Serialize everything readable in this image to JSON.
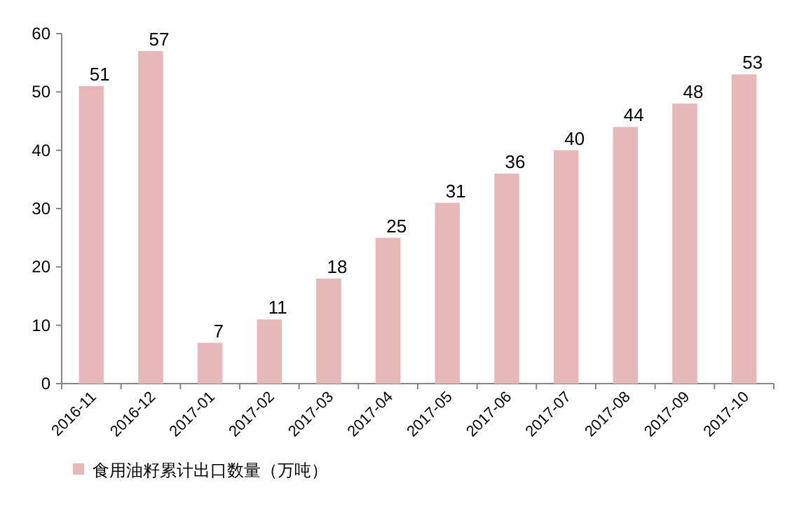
{
  "chart_data": {
    "type": "bar",
    "categories": [
      "2016-11",
      "2016-12",
      "2017-01",
      "2017-02",
      "2017-03",
      "2017-04",
      "2017-05",
      "2017-06",
      "2017-07",
      "2017-08",
      "2017-09",
      "2017-10"
    ],
    "series": [
      {
        "name": "食用油籽累计出口数量（万吨）",
        "color": "#e6b9b8",
        "values": [
          51,
          57,
          7,
          11,
          18,
          25,
          31,
          36,
          40,
          44,
          48,
          53
        ]
      }
    ],
    "ylim": [
      0,
      60
    ],
    "yticks": [
      0,
      10,
      20,
      30,
      40,
      50,
      60
    ],
    "data_labels": true,
    "legend": "bottom left",
    "grid": false
  }
}
